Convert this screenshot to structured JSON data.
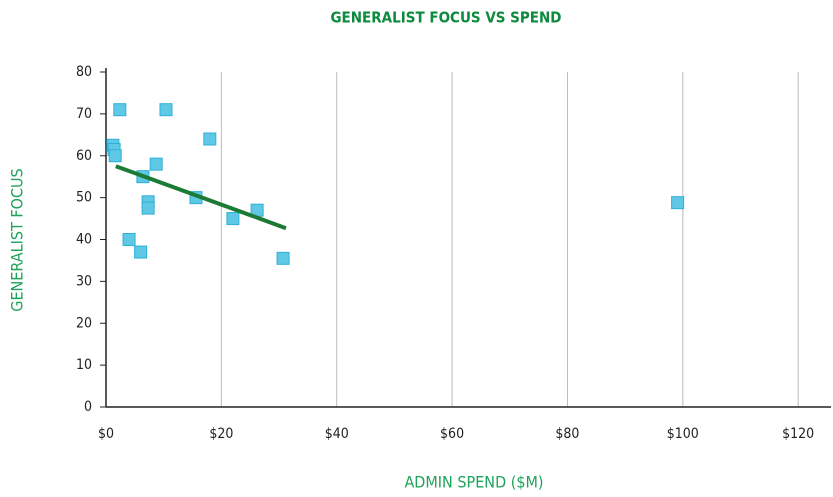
{
  "chart_data": {
    "type": "scatter",
    "title": "GENERALIST FOCUS VS SPEND",
    "x_label": "ADMIN SPEND ($M)",
    "y_label": "GENERALIST FOCUS",
    "x": [
      1.2,
      1.4,
      1.6,
      2.4,
      10.4,
      18,
      8.7,
      6.4,
      7.3,
      7.3,
      15.6,
      22,
      26.2,
      4,
      6,
      30.7,
      99.1
    ],
    "y": [
      62.5,
      61.5,
      60,
      71,
      71,
      64,
      58,
      55,
      49,
      47.5,
      50,
      45,
      47,
      40,
      37,
      35.5,
      48.8
    ],
    "color": "#5ec8e5",
    "edge_color": "#2fb0d8",
    "trendline": {
      "x": [
        1.7,
        31.2
      ],
      "y": [
        57.5,
        42.7
      ],
      "color": "#1b7a33"
    },
    "xlim": [
      0,
      125
    ],
    "ylim": [
      0,
      80
    ],
    "xticks": [
      {
        "value": 0,
        "label": "$0"
      },
      {
        "value": 20,
        "label": "$20"
      },
      {
        "value": 40,
        "label": "$40"
      },
      {
        "value": 60,
        "label": "$60"
      },
      {
        "value": 80,
        "label": "$80"
      },
      {
        "value": 100,
        "label": "$100"
      },
      {
        "value": 120,
        "label": "$120"
      }
    ],
    "yticks": [
      0,
      10,
      20,
      30,
      40,
      50,
      60,
      70,
      80
    ],
    "grid": true
  }
}
